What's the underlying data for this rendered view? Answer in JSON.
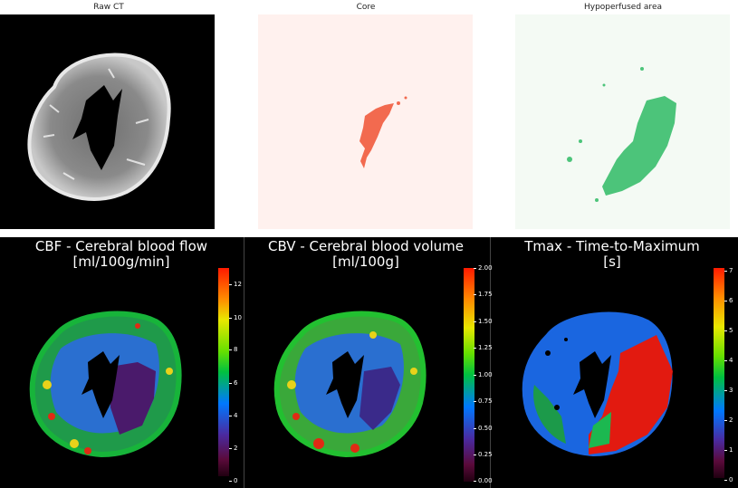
{
  "top_panels": [
    {
      "id": "raw-ct",
      "title": "Raw CT"
    },
    {
      "id": "core",
      "title": "Core"
    },
    {
      "id": "hypoperfused",
      "title": "Hypoperfused area"
    }
  ],
  "bottom_panels": [
    {
      "id": "cbf",
      "title_line1": "CBF - Cerebral blood flow",
      "title_line2": "[ml/100g/min]",
      "colorbar_ticks": [
        "12",
        "10",
        "8",
        "6",
        "4",
        "2",
        "0"
      ]
    },
    {
      "id": "cbv",
      "title_line1": "CBV - Cerebral blood volume",
      "title_line2": "[ml/100g]",
      "colorbar_ticks": [
        "2.00",
        "1.75",
        "1.50",
        "1.25",
        "1.00",
        "0.75",
        "0.50",
        "0.25",
        "0.00"
      ]
    },
    {
      "id": "tmax",
      "title_line1": "Tmax - Time-to-Maximum",
      "title_line2": "[s]",
      "colorbar_ticks": [
        "7",
        "6",
        "5",
        "4",
        "3",
        "2",
        "1",
        "0"
      ]
    }
  ],
  "colors": {
    "core_background": "#fff1ee",
    "core_lesion": "#f26a4f",
    "hypo_background": "#f4faf4",
    "hypo_lesion": "#4cc47a"
  }
}
